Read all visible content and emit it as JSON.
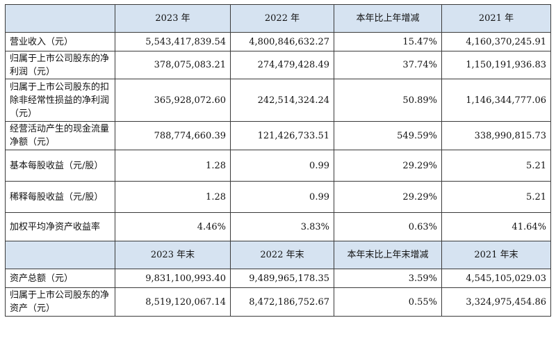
{
  "header1": [
    "2023 年",
    "2022 年",
    "本年比上年增减",
    "2021 年"
  ],
  "rows1": [
    {
      "label": "营业收入（元）",
      "values": [
        "5,543,417,839.54",
        "4,800,846,632.27",
        "15.47%",
        "4,160,370,245.91"
      ]
    },
    {
      "label": "归属于上市公司股东的净利润（元）",
      "values": [
        "378,075,083.21",
        "274,479,428.49",
        "37.74%",
        "1,150,191,936.83"
      ]
    },
    {
      "label": "归属于上市公司股东的扣除非经常性损益的净利润（元）",
      "values": [
        "365,928,072.60",
        "242,514,324.24",
        "50.89%",
        "1,146,344,777.06"
      ]
    },
    {
      "label": "经营活动产生的现金流量净额（元）",
      "values": [
        "788,774,660.39",
        "121,426,733.51",
        "549.59%",
        "338,990,815.73"
      ]
    },
    {
      "label": "基本每股收益（元/股）",
      "values": [
        "1.28",
        "0.99",
        "29.29%",
        "5.21"
      ]
    },
    {
      "label": "稀释每股收益（元/股）",
      "values": [
        "1.28",
        "0.99",
        "29.29%",
        "5.21"
      ]
    },
    {
      "label": "加权平均净资产收益率",
      "values": [
        "4.46%",
        "3.83%",
        "0.63%",
        "41.64%"
      ]
    }
  ],
  "header2": [
    "2023 年末",
    "2022 年末",
    "本年末比上年末增减",
    "2021 年末"
  ],
  "rows2": [
    {
      "label": "资产总额（元）",
      "values": [
        "9,831,100,993.40",
        "9,489,965,178.35",
        "3.59%",
        "4,545,105,029.03"
      ]
    },
    {
      "label": "归属于上市公司股东的净资产（元）",
      "values": [
        "8,519,120,067.14",
        "8,472,186,752.67",
        "0.55%",
        "3,324,975,454.86"
      ]
    }
  ]
}
